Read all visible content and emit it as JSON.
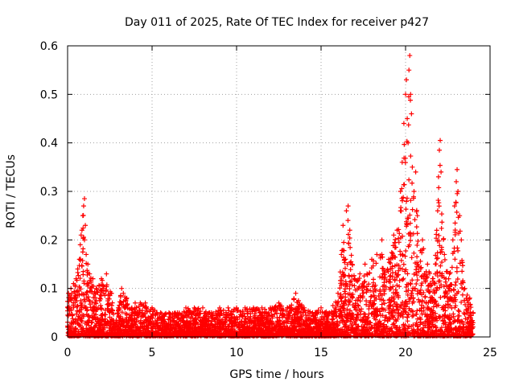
{
  "chart_data": {
    "type": "scatter",
    "title": "Day 011 of 2025, Rate Of TEC Index for receiver p427",
    "xlabel": "GPS time / hours",
    "ylabel": "ROTI / TECUs",
    "xlim": [
      0,
      25
    ],
    "ylim": [
      0,
      0.6
    ],
    "xticks": [
      0,
      5,
      10,
      15,
      20,
      25
    ],
    "yticks": [
      0,
      0.1,
      0.2,
      0.3,
      0.4,
      0.5,
      0.6
    ],
    "xtick_labels": [
      "0",
      "5",
      "10",
      "15",
      "20",
      "25"
    ],
    "ytick_labels": [
      "0",
      "0.1",
      "0.2",
      "0.3",
      "0.4",
      "0.5",
      "0.6"
    ],
    "grid": true,
    "marker": "+",
    "color": "#ff0000",
    "x_data_extent": [
      0,
      24
    ],
    "series": [
      {
        "points": [
          [
            0.05,
            0.09
          ],
          [
            0.2,
            0.1
          ],
          [
            0.35,
            0.11
          ],
          [
            0.5,
            0.12
          ],
          [
            0.6,
            0.14
          ],
          [
            0.7,
            0.16
          ],
          [
            0.75,
            0.19
          ],
          [
            0.8,
            0.21
          ],
          [
            0.85,
            0.22
          ],
          [
            0.9,
            0.25
          ],
          [
            0.95,
            0.27
          ],
          [
            1.0,
            0.285
          ],
          [
            1.0,
            0.2
          ],
          [
            1.05,
            0.23
          ],
          [
            1.1,
            0.17
          ],
          [
            1.2,
            0.15
          ],
          [
            1.3,
            0.13
          ],
          [
            1.5,
            0.12
          ],
          [
            1.7,
            0.1
          ],
          [
            2.0,
            0.12
          ],
          [
            2.3,
            0.13
          ],
          [
            2.6,
            0.09
          ],
          [
            3.0,
            0.06
          ],
          [
            3.2,
            0.1
          ],
          [
            3.3,
            0.09
          ],
          [
            3.5,
            0.08
          ],
          [
            3.8,
            0.06
          ],
          [
            4.0,
            0.07
          ],
          [
            4.3,
            0.07
          ],
          [
            4.6,
            0.07
          ],
          [
            5.0,
            0.06
          ],
          [
            5.5,
            0.05
          ],
          [
            6.0,
            0.05
          ],
          [
            6.5,
            0.05
          ],
          [
            7.0,
            0.06
          ],
          [
            7.5,
            0.06
          ],
          [
            8.0,
            0.06
          ],
          [
            8.5,
            0.05
          ],
          [
            9.0,
            0.06
          ],
          [
            9.5,
            0.06
          ],
          [
            10.0,
            0.06
          ],
          [
            10.5,
            0.06
          ],
          [
            11.0,
            0.06
          ],
          [
            11.5,
            0.06
          ],
          [
            12.0,
            0.06
          ],
          [
            12.5,
            0.07
          ],
          [
            13.0,
            0.06
          ],
          [
            13.5,
            0.09
          ],
          [
            14.0,
            0.06
          ],
          [
            14.5,
            0.05
          ],
          [
            15.0,
            0.06
          ],
          [
            15.5,
            0.05
          ],
          [
            16.0,
            0.09
          ],
          [
            16.2,
            0.17
          ],
          [
            16.3,
            0.23
          ],
          [
            16.5,
            0.26
          ],
          [
            16.6,
            0.27
          ],
          [
            16.7,
            0.22
          ],
          [
            17.0,
            0.12
          ],
          [
            17.3,
            0.13
          ],
          [
            17.6,
            0.15
          ],
          [
            18.0,
            0.16
          ],
          [
            18.3,
            0.17
          ],
          [
            18.6,
            0.2
          ],
          [
            19.0,
            0.16
          ],
          [
            19.3,
            0.21
          ],
          [
            19.5,
            0.22
          ],
          [
            19.7,
            0.3
          ],
          [
            19.8,
            0.36
          ],
          [
            19.9,
            0.44
          ],
          [
            20.0,
            0.5
          ],
          [
            20.05,
            0.53
          ],
          [
            20.1,
            0.45
          ],
          [
            20.15,
            0.4
          ],
          [
            20.2,
            0.55
          ],
          [
            20.25,
            0.58
          ],
          [
            20.3,
            0.5
          ],
          [
            20.35,
            0.46
          ],
          [
            20.4,
            0.35
          ],
          [
            20.5,
            0.3
          ],
          [
            20.6,
            0.34
          ],
          [
            20.7,
            0.25
          ],
          [
            21.0,
            0.2
          ],
          [
            21.3,
            0.15
          ],
          [
            21.6,
            0.12
          ],
          [
            21.9,
            0.26
          ],
          [
            21.95,
            0.33
          ],
          [
            22.0,
            0.385
          ],
          [
            22.05,
            0.405
          ],
          [
            22.1,
            0.34
          ],
          [
            22.3,
            0.17
          ],
          [
            22.6,
            0.13
          ],
          [
            22.8,
            0.2
          ],
          [
            22.9,
            0.27
          ],
          [
            23.0,
            0.32
          ],
          [
            23.05,
            0.345
          ],
          [
            23.1,
            0.3
          ],
          [
            23.2,
            0.25
          ],
          [
            23.3,
            0.2
          ],
          [
            23.5,
            0.1
          ],
          [
            23.8,
            0.08
          ],
          [
            24.0,
            0.05
          ]
        ]
      }
    ]
  }
}
